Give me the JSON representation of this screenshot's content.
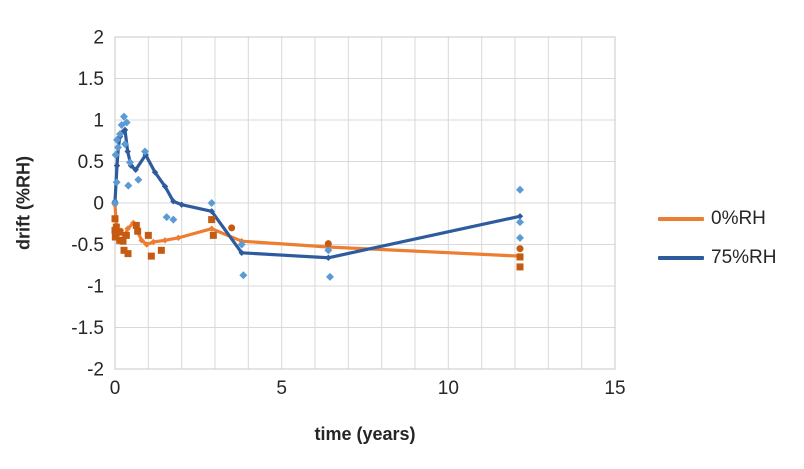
{
  "chart_data": {
    "type": "line+scatter",
    "title": "",
    "xlabel": "time (years)",
    "ylabel": "drift (%RH)",
    "xlim": [
      0,
      15
    ],
    "ylim": [
      -2,
      2
    ],
    "xticks": [
      0,
      5,
      10,
      15
    ],
    "yticks": [
      2,
      1.5,
      1,
      0.5,
      0,
      -0.5,
      -1,
      -1.5,
      -2
    ],
    "x_minor_grid_step": 1,
    "y_grid_step": 0.5,
    "grid_on": true,
    "grid_color": "#d9d9d9",
    "border_color": "#c9c9c9",
    "legend_position": "right",
    "colors": {
      "orange_line": "#ED7D31",
      "orange_scatter": "#C55A11",
      "blue_line": "#2E5B9E",
      "blue_scatter": "#5B9BD5"
    },
    "series": [
      {
        "name": "0%RH mean line",
        "type": "line",
        "color": "#ED7D31",
        "marker": "diamond",
        "points": [
          [
            0,
            -0.02
          ],
          [
            0.05,
            -0.33
          ],
          [
            0.1,
            -0.38
          ],
          [
            0.18,
            -0.33
          ],
          [
            0.28,
            -0.42
          ],
          [
            0.38,
            -0.31
          ],
          [
            0.55,
            -0.24
          ],
          [
            0.8,
            -0.45
          ],
          [
            0.95,
            -0.5
          ],
          [
            1.15,
            -0.47
          ],
          [
            1.5,
            -0.45
          ],
          [
            1.9,
            -0.42
          ],
          [
            2.9,
            -0.31
          ],
          [
            3.8,
            -0.46
          ],
          [
            6.4,
            -0.53
          ],
          [
            12.15,
            -0.64
          ]
        ]
      },
      {
        "name": "75%RH mean line",
        "type": "line",
        "color": "#2E5B9E",
        "marker": "diamond",
        "points": [
          [
            0,
            0.02
          ],
          [
            0.06,
            0.45
          ],
          [
            0.1,
            0.67
          ],
          [
            0.15,
            0.8
          ],
          [
            0.22,
            0.85
          ],
          [
            0.3,
            0.88
          ],
          [
            0.38,
            0.62
          ],
          [
            0.48,
            0.45
          ],
          [
            0.62,
            0.4
          ],
          [
            0.92,
            0.58
          ],
          [
            1.2,
            0.37
          ],
          [
            1.5,
            0.2
          ],
          [
            1.75,
            0.02
          ],
          [
            2,
            -0.02
          ],
          [
            2.9,
            -0.1
          ],
          [
            3.8,
            -0.6
          ],
          [
            6.4,
            -0.66
          ],
          [
            12.15,
            -0.16
          ]
        ]
      },
      {
        "name": "0%RH readings (squares)",
        "type": "scatter",
        "shape": "square",
        "color": "#C55A11",
        "points": [
          [
            0,
            -0.19
          ],
          [
            0,
            -0.33
          ],
          [
            0.01,
            -0.41
          ],
          [
            0.04,
            -0.29
          ],
          [
            0.14,
            -0.35
          ],
          [
            0.14,
            -0.45
          ],
          [
            0.24,
            -0.46
          ],
          [
            0.27,
            -0.57
          ],
          [
            0.34,
            -0.39
          ],
          [
            0.39,
            -0.61
          ],
          [
            0.64,
            -0.27
          ],
          [
            0.68,
            -0.34
          ],
          [
            1,
            -0.39
          ],
          [
            1.09,
            -0.64
          ],
          [
            1.39,
            -0.57
          ],
          [
            2.9,
            -0.2
          ],
          [
            2.95,
            -0.39
          ],
          [
            12.15,
            -0.65
          ],
          [
            12.15,
            -0.77
          ]
        ]
      },
      {
        "name": "0%RH readings (dots)",
        "type": "scatter",
        "shape": "circle",
        "color": "#C55A11",
        "points": [
          [
            3.5,
            -0.3
          ],
          [
            6.4,
            -0.49
          ],
          [
            12.15,
            -0.55
          ]
        ]
      },
      {
        "name": "75%RH readings (diamonds)",
        "type": "scatter",
        "shape": "diamond",
        "color": "#5B9BD5",
        "points": [
          [
            0,
            0
          ],
          [
            0.02,
            0.58
          ],
          [
            0.05,
            0.25
          ],
          [
            0.06,
            0.76
          ],
          [
            0.09,
            0.67
          ],
          [
            0.15,
            0.83
          ],
          [
            0.2,
            0.94
          ],
          [
            0.27,
            1.04
          ],
          [
            0.3,
            0.71
          ],
          [
            0.35,
            0.97
          ],
          [
            0.4,
            0.21
          ],
          [
            0.45,
            0.49
          ],
          [
            0.7,
            0.28
          ],
          [
            0.9,
            0.62
          ],
          [
            1.55,
            -0.17
          ],
          [
            1.75,
            -0.2
          ],
          [
            2.9,
            0
          ],
          [
            3.8,
            -0.5
          ],
          [
            3.85,
            -0.87
          ],
          [
            6.4,
            -0.57
          ],
          [
            6.45,
            -0.89
          ],
          [
            12.15,
            0.16
          ],
          [
            12.15,
            -0.23
          ],
          [
            12.15,
            -0.42
          ]
        ]
      }
    ],
    "legend": [
      {
        "label": "0%RH",
        "color": "#ED7D31"
      },
      {
        "label": "75%RH",
        "color": "#2E5B9E"
      }
    ]
  }
}
